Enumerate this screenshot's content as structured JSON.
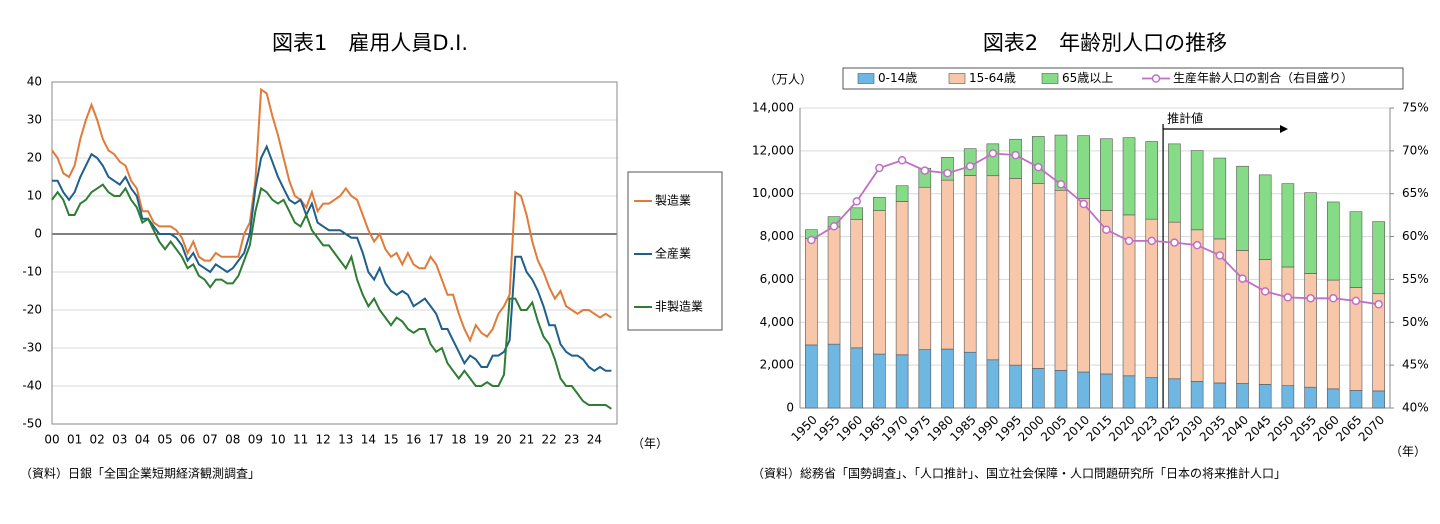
{
  "chart_data": [
    {
      "type": "line",
      "title": "図表1　雇用人員D.I.",
      "x_label": "（年）",
      "source": "（資料）日銀「全国企業短期経済観測調査」",
      "categories": [
        "00",
        null,
        null,
        null,
        "01",
        null,
        null,
        null,
        "02",
        null,
        null,
        null,
        "03",
        null,
        null,
        null,
        "04",
        null,
        null,
        null,
        "05",
        null,
        null,
        null,
        "06",
        null,
        null,
        null,
        "07",
        null,
        null,
        null,
        "08",
        null,
        null,
        null,
        "09",
        null,
        null,
        null,
        "10",
        null,
        null,
        null,
        "11",
        null,
        null,
        null,
        "12",
        null,
        null,
        null,
        "13",
        null,
        null,
        null,
        "14",
        null,
        null,
        null,
        "15",
        null,
        null,
        null,
        "16",
        null,
        null,
        null,
        "17",
        null,
        null,
        null,
        "18",
        null,
        null,
        null,
        "19",
        null,
        null,
        null,
        "20",
        null,
        null,
        null,
        "21",
        null,
        null,
        null,
        "22",
        null,
        null,
        null,
        "23",
        null,
        null,
        null,
        "24",
        null,
        null,
        null
      ],
      "ylim": [
        -50,
        40
      ],
      "yticks": [
        -50,
        -40,
        -30,
        -20,
        -10,
        0,
        10,
        20,
        30,
        40
      ],
      "grid": true,
      "legend": "right",
      "series": [
        {
          "name": "製造業",
          "color": "#e07b39",
          "values": [
            22,
            20,
            16,
            15,
            18,
            25,
            30,
            34,
            30,
            25,
            22,
            21,
            19,
            18,
            14,
            12,
            6,
            6,
            3,
            2,
            2,
            2,
            1,
            -1,
            -5,
            -2,
            -6,
            -7,
            -7,
            -5,
            -6,
            -6,
            -6,
            -6,
            0,
            3,
            14,
            38,
            37,
            31,
            26,
            20,
            14,
            10,
            9,
            7,
            11,
            6,
            8,
            8,
            9,
            10,
            12,
            10,
            9,
            5,
            1,
            -2,
            0,
            -4,
            -6,
            -5,
            -8,
            -5,
            -8,
            -9,
            -9,
            -6,
            -8,
            -12,
            -16,
            -16,
            -21,
            -25,
            -28,
            -24,
            -26,
            -27,
            -25,
            -21,
            -19,
            -16,
            11,
            10,
            5,
            -2,
            -7,
            -10,
            -14,
            -17,
            -15,
            -19,
            -20,
            -21,
            -20,
            -20,
            -21,
            -22,
            -21,
            -22
          ]
        },
        {
          "name": "全産業",
          "color": "#1f5f8b",
          "values": [
            14,
            14,
            11,
            9,
            11,
            15,
            18,
            21,
            20,
            18,
            15,
            14,
            13,
            15,
            12,
            10,
            4,
            4,
            2,
            0,
            0,
            0,
            -1,
            -3,
            -7,
            -5,
            -8,
            -9,
            -10,
            -8,
            -9,
            -10,
            -9,
            -7,
            -5,
            0,
            12,
            20,
            23,
            19,
            15,
            12,
            9,
            8,
            9,
            5,
            8,
            3,
            2,
            1,
            1,
            1,
            0,
            -1,
            -1,
            -5,
            -10,
            -12,
            -9,
            -13,
            -15,
            -16,
            -15,
            -16,
            -19,
            -18,
            -17,
            -19,
            -21,
            -25,
            -25,
            -28,
            -31,
            -34,
            -32,
            -33,
            -35,
            -35,
            -32,
            -32,
            -31,
            -28,
            -6,
            -6,
            -10,
            -12,
            -15,
            -19,
            -24,
            -24,
            -29,
            -31,
            -32,
            -32,
            -33,
            -35,
            -36,
            -35,
            -36,
            -36
          ]
        },
        {
          "name": "非製造業",
          "color": "#2e7d32",
          "values": [
            9,
            11,
            9,
            5,
            5,
            8,
            9,
            11,
            12,
            13,
            11,
            10,
            10,
            12,
            9,
            7,
            3,
            4,
            1,
            -2,
            -4,
            -2,
            -4,
            -6,
            -9,
            -8,
            -11,
            -12,
            -14,
            -12,
            -12,
            -13,
            -13,
            -11,
            -7,
            -3,
            6,
            12,
            11,
            9,
            8,
            9,
            6,
            3,
            2,
            5,
            1,
            -1,
            -3,
            -3,
            -5,
            -7,
            -9,
            -6,
            -12,
            -16,
            -19,
            -17,
            -20,
            -22,
            -24,
            -22,
            -23,
            -25,
            -26,
            -25,
            -25,
            -29,
            -31,
            -30,
            -34,
            -36,
            -38,
            -36,
            -38,
            -40,
            -40,
            -39,
            -40,
            -40,
            -37,
            -17,
            -17,
            -20,
            -20,
            -18,
            -23,
            -27,
            -29,
            -33,
            -38,
            -40,
            -40,
            -42,
            -44,
            -45,
            -45,
            -45,
            -45,
            -46
          ]
        }
      ]
    },
    {
      "type": "bar",
      "stacked": true,
      "title": "図表2　年齢別人口の推移",
      "y_label": "（万人）",
      "x_label": "（年）",
      "annotation": "推計値",
      "source": "（資料）総務省「国勢調査」、「人口推計」、国立社会保障・人口問題研究所「日本の将来推計人口」",
      "categories": [
        "1950",
        "1955",
        "1960",
        "1965",
        "1970",
        "1975",
        "1980",
        "1985",
        "1990",
        "1995",
        "2000",
        "2005",
        "2010",
        "2015",
        "2020",
        "2023",
        "2025",
        "2030",
        "2035",
        "2040",
        "2045",
        "2050",
        "2055",
        "2060",
        "2065",
        "2070"
      ],
      "ylim": [
        0,
        14000
      ],
      "yticks": [
        0,
        {
          "value": 2000,
          "label": "2,000"
        },
        {
          "value": 4000,
          "label": "4,000"
        },
        {
          "value": 6000,
          "label": "6,000"
        },
        {
          "value": 8000,
          "label": "8,000"
        },
        {
          "value": 10000,
          "label": "10,000"
        },
        {
          "value": 12000,
          "label": "12,000"
        },
        {
          "value": 14000,
          "label": "14,000"
        }
      ],
      "y2lim": [
        40,
        75
      ],
      "y2ticks": [
        {
          "value": 40,
          "label": "40%"
        },
        {
          "value": 45,
          "label": "45%"
        },
        {
          "value": 50,
          "label": "50%"
        },
        {
          "value": 55,
          "label": "55%"
        },
        {
          "value": 60,
          "label": "60%"
        },
        {
          "value": 65,
          "label": "65%"
        },
        {
          "value": 70,
          "label": "70%"
        },
        {
          "value": 75,
          "label": "75%"
        }
      ],
      "grid": true,
      "legend": "top",
      "series": [
        {
          "name": "0-14歳",
          "color": "#6fb7e3",
          "values": [
            2943,
            2980,
            2807,
            2517,
            2482,
            2722,
            2751,
            2603,
            2249,
            2001,
            1847,
            1752,
            1680,
            1589,
            1503,
            1417,
            1363,
            1240,
            1169,
            1142,
            1103,
            1041,
            971,
            893,
            818,
            797
          ]
        },
        {
          "name": "15-64歳",
          "color": "#f8c7a9",
          "values": [
            4966,
            5473,
            6000,
            6693,
            7157,
            7581,
            7883,
            8251,
            8590,
            8716,
            8622,
            8409,
            8103,
            7629,
            7509,
            7395,
            7310,
            7076,
            6722,
            6213,
            5832,
            5540,
            5307,
            5078,
            4809,
            4535
          ]
        },
        {
          "name": "65歳以上",
          "color": "#86dc86",
          "values": [
            411,
            475,
            535,
            618,
            733,
            887,
            1065,
            1247,
            1489,
            1826,
            2204,
            2576,
            2925,
            3347,
            3603,
            3623,
            3653,
            3696,
            3773,
            3928,
            3945,
            3888,
            3770,
            3644,
            3532,
            3367
          ]
        },
        {
          "name": "生産年齢人口の割合（右目盛り）",
          "type": "line",
          "axis": "y2",
          "color": "#c06fc7",
          "values": [
            59.6,
            61.2,
            64.1,
            68.0,
            68.9,
            67.7,
            67.4,
            68.2,
            69.7,
            69.5,
            68.1,
            66.1,
            63.8,
            60.8,
            59.5,
            59.5,
            59.3,
            59.0,
            57.8,
            55.1,
            53.6,
            52.9,
            52.8,
            52.8,
            52.5,
            52.1
          ]
        }
      ]
    }
  ]
}
